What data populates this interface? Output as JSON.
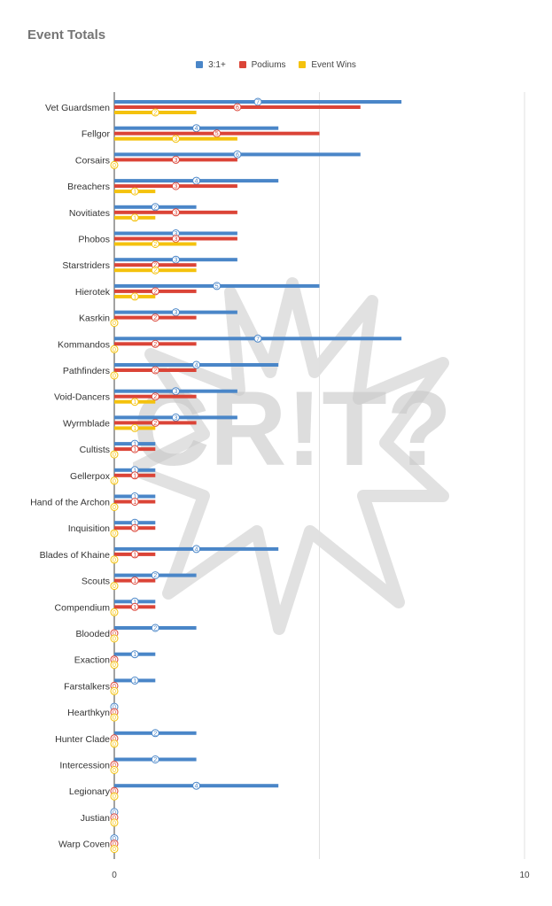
{
  "chart_data": {
    "type": "bar",
    "orientation": "horizontal",
    "title": "Event Totals",
    "xlabel": "",
    "ylabel": "",
    "xlim": [
      0,
      10
    ],
    "x_ticks": [
      "0",
      "10"
    ],
    "grid": true,
    "legend": "top",
    "watermark": "CR!T?",
    "categories": [
      "Vet Guardsmen",
      "Fellgor",
      "Corsairs",
      "Breachers",
      "Novitiates",
      "Phobos",
      "Starstriders",
      "Hierotek",
      "Kasrkin",
      "Kommandos",
      "Pathfinders",
      "Void-Dancers",
      "Wyrmblade",
      "Cultists",
      "Gellerpox",
      "Hand of the Archon",
      "Inquisition",
      "Blades of Khaine",
      "Scouts",
      "Compendium",
      "Blooded",
      "Exaction",
      "Farstalkers",
      "Hearthkyn",
      "Hunter Clade",
      "Intercession",
      "Legionary",
      "Justian",
      "Warp Coven"
    ],
    "series": [
      {
        "name": "3:1+",
        "color": "#4a86c8",
        "values": [
          7,
          4,
          6,
          4,
          2,
          3,
          3,
          5,
          3,
          7,
          4,
          3,
          3,
          1,
          1,
          1,
          1,
          4,
          2,
          1,
          2,
          1,
          1,
          0,
          2,
          2,
          4,
          0,
          0
        ]
      },
      {
        "name": "Podiums",
        "color": "#db4437",
        "values": [
          6,
          5,
          3,
          3,
          3,
          3,
          2,
          2,
          2,
          2,
          2,
          2,
          2,
          1,
          1,
          1,
          1,
          1,
          1,
          1,
          0,
          0,
          0,
          0,
          0,
          0,
          0,
          0,
          0
        ]
      },
      {
        "name": "Event Wins",
        "color": "#f4c20d",
        "values": [
          2,
          3,
          0,
          1,
          1,
          2,
          2,
          1,
          0,
          0,
          0,
          1,
          1,
          0,
          0,
          0,
          0,
          0,
          0,
          0,
          0,
          0,
          0,
          0,
          0,
          0,
          0,
          0,
          0
        ]
      }
    ]
  }
}
